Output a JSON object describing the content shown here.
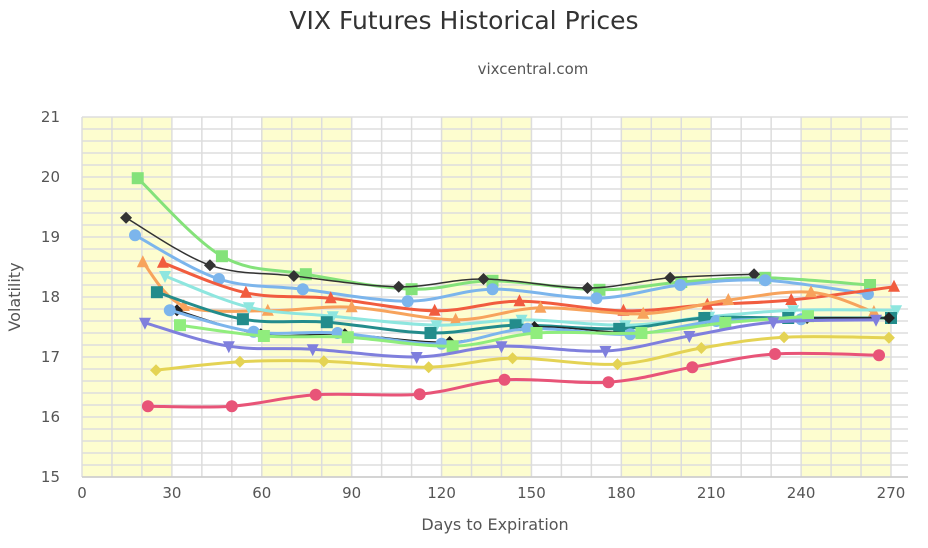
{
  "chart_data": {
    "type": "line",
    "title": "VIX Futures Historical Prices",
    "subtitle": "vixcentral.com",
    "xlabel": "Days to Expiration",
    "ylabel": "Volatility",
    "xlim": [
      0,
      275
    ],
    "ylim": [
      15,
      21
    ],
    "xticks": [
      0,
      30,
      60,
      90,
      120,
      150,
      180,
      210,
      240,
      270
    ],
    "yticks": [
      15,
      16,
      17,
      18,
      19,
      20,
      21
    ],
    "grid": true,
    "band_color": "#fdfdcf",
    "bands": [
      [
        0,
        30
      ],
      [
        60,
        90
      ],
      [
        120,
        150
      ],
      [
        180,
        210
      ],
      [
        240,
        270
      ]
    ],
    "series": [
      {
        "color": "#84e27a",
        "marker": "square",
        "points": [
          [
            18.6,
            19.98
          ],
          [
            46.7,
            18.68
          ],
          [
            74.7,
            18.38
          ],
          [
            110,
            18.13
          ],
          [
            137,
            18.27
          ],
          [
            172.7,
            18.12
          ],
          [
            200,
            18.25
          ],
          [
            228,
            18.32
          ],
          [
            263,
            18.2
          ]
        ]
      },
      {
        "color": "#333333",
        "marker": "diamond",
        "points": [
          [
            14.7,
            19.32
          ],
          [
            42.7,
            18.53
          ],
          [
            70.7,
            18.35
          ],
          [
            105.7,
            18.17
          ],
          [
            134,
            18.3
          ],
          [
            168.7,
            18.15
          ],
          [
            196.3,
            18.32
          ],
          [
            224.3,
            18.38
          ]
        ]
      },
      {
        "color": "#7cb5ec",
        "marker": "circle",
        "points": [
          [
            17.7,
            19.03
          ],
          [
            45.7,
            18.3
          ],
          [
            73.7,
            18.13
          ],
          [
            108.7,
            17.93
          ],
          [
            137,
            18.13
          ],
          [
            171.7,
            17.98
          ],
          [
            199.7,
            18.2
          ],
          [
            228,
            18.28
          ],
          [
            262.3,
            18.05
          ]
        ]
      },
      {
        "color": "#f15c3f",
        "marker": "triangle",
        "points": [
          [
            27,
            18.57
          ],
          [
            54.7,
            18.07
          ],
          [
            83,
            17.98
          ],
          [
            117.7,
            17.77
          ],
          [
            146,
            17.93
          ],
          [
            180.7,
            17.77
          ],
          [
            208.7,
            17.87
          ],
          [
            236.7,
            17.95
          ],
          [
            271,
            18.17
          ]
        ]
      },
      {
        "color": "#f7a35c",
        "marker": "triangle",
        "points": [
          [
            20.3,
            18.58
          ],
          [
            34,
            17.85
          ],
          [
            62,
            17.77
          ],
          [
            90,
            17.83
          ],
          [
            124.7,
            17.62
          ],
          [
            153,
            17.82
          ],
          [
            187.3,
            17.72
          ],
          [
            215.7,
            17.95
          ],
          [
            243.3,
            18.08
          ],
          [
            264.3,
            17.75
          ]
        ]
      },
      {
        "color": "#8ee6df",
        "marker": "triangle-down",
        "points": [
          [
            27.7,
            18.35
          ],
          [
            55.7,
            17.83
          ],
          [
            83.7,
            17.68
          ],
          [
            118.3,
            17.53
          ],
          [
            146.7,
            17.62
          ],
          [
            181.3,
            17.53
          ],
          [
            209.3,
            17.67
          ],
          [
            237.3,
            17.78
          ],
          [
            271.7,
            17.78
          ]
        ]
      },
      {
        "color": "#238c8c",
        "marker": "square",
        "points": [
          [
            25,
            18.08
          ],
          [
            53.7,
            17.63
          ],
          [
            81.7,
            17.58
          ],
          [
            116.3,
            17.4
          ],
          [
            144.7,
            17.53
          ],
          [
            179.3,
            17.47
          ],
          [
            207.7,
            17.65
          ],
          [
            235.7,
            17.65
          ],
          [
            270,
            17.65
          ]
        ]
      },
      {
        "color": "#222222",
        "marker": "diamond",
        "points": [
          [
            31.7,
            17.78
          ],
          [
            59.7,
            17.38
          ],
          [
            87.7,
            17.38
          ],
          [
            122.7,
            17.25
          ],
          [
            151,
            17.5
          ],
          [
            186,
            17.4
          ],
          [
            214,
            17.58
          ],
          [
            242,
            17.65
          ],
          [
            269.3,
            17.65
          ]
        ]
      },
      {
        "color": "#7cb5ec",
        "marker": "circle",
        "points": [
          [
            29.3,
            17.78
          ],
          [
            57.3,
            17.42
          ],
          [
            85.3,
            17.4
          ],
          [
            120,
            17.22
          ],
          [
            148.7,
            17.47
          ],
          [
            183,
            17.38
          ],
          [
            211.7,
            17.6
          ],
          [
            240,
            17.63
          ]
        ]
      },
      {
        "color": "#90ed7d",
        "marker": "square",
        "points": [
          [
            32.7,
            17.53
          ],
          [
            60.7,
            17.35
          ],
          [
            88.7,
            17.33
          ],
          [
            123.7,
            17.18
          ],
          [
            151.7,
            17.4
          ],
          [
            186.7,
            17.4
          ],
          [
            214.7,
            17.57
          ],
          [
            242.3,
            17.68
          ]
        ]
      },
      {
        "color": "#7f7fdd",
        "marker": "triangle-down",
        "points": [
          [
            21,
            17.57
          ],
          [
            49,
            17.18
          ],
          [
            77,
            17.13
          ],
          [
            111.7,
            17.0
          ],
          [
            140,
            17.18
          ],
          [
            174.7,
            17.1
          ],
          [
            202.7,
            17.35
          ],
          [
            230.7,
            17.58
          ],
          [
            265,
            17.62
          ]
        ]
      },
      {
        "color": "#e4d354",
        "marker": "diamond",
        "points": [
          [
            24.7,
            16.78
          ],
          [
            52.7,
            16.92
          ],
          [
            80.7,
            16.93
          ],
          [
            115.7,
            16.83
          ],
          [
            143.7,
            16.98
          ],
          [
            178.7,
            16.88
          ],
          [
            206.7,
            17.15
          ],
          [
            234.3,
            17.33
          ],
          [
            269.3,
            17.32
          ]
        ]
      },
      {
        "color": "#e85478",
        "marker": "circle",
        "points": [
          [
            22,
            16.18
          ],
          [
            50,
            16.18
          ],
          [
            78,
            16.37
          ],
          [
            112.7,
            16.38
          ],
          [
            141,
            16.62
          ],
          [
            175.7,
            16.58
          ],
          [
            203.7,
            16.83
          ],
          [
            231.3,
            17.05
          ],
          [
            266,
            17.03
          ]
        ]
      }
    ]
  }
}
